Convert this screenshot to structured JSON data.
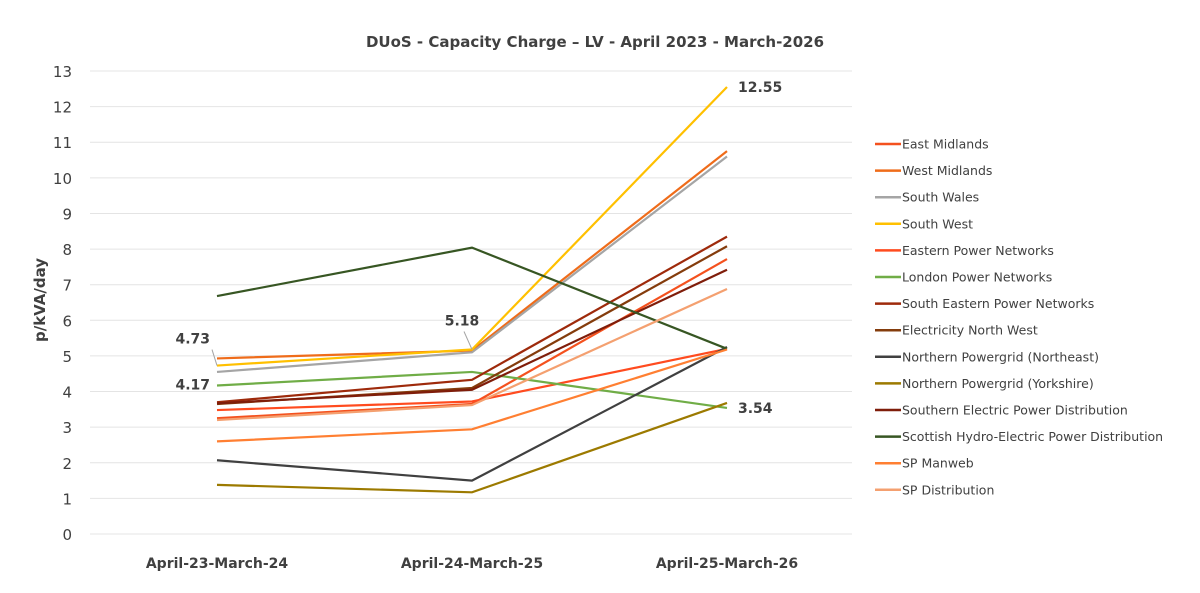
{
  "chart_data": {
    "type": "line",
    "title": "DUoS - Capacity Charge – LV  - April 2023 - March-2026",
    "ylabel": "p/kVA/day",
    "xlabel": "",
    "ylim": [
      0,
      13
    ],
    "yticks": [
      "0",
      "1",
      "2",
      "3",
      "4",
      "5",
      "6",
      "7",
      "8",
      "9",
      "10",
      "11",
      "12",
      "13"
    ],
    "categories": [
      "April-23-March-24",
      "April-24-March-25",
      "April-25-March-26"
    ],
    "grid": true,
    "legend_position": "right",
    "series": [
      {
        "name": "East Midlands",
        "color": "#f4511e",
        "values": [
          3.25,
          3.65,
          7.72
        ]
      },
      {
        "name": "West Midlands",
        "color": "#ef6c1a",
        "values": [
          4.93,
          5.15,
          10.75
        ]
      },
      {
        "name": "South Wales",
        "color": "#a5a5a5",
        "values": [
          4.55,
          5.1,
          10.6
        ]
      },
      {
        "name": "South West",
        "color": "#ffc000",
        "values": [
          4.73,
          5.18,
          12.55
        ]
      },
      {
        "name": "Eastern Power Networks",
        "color": "#ff4b1f",
        "values": [
          3.48,
          3.72,
          5.2
        ]
      },
      {
        "name": "London Power Networks",
        "color": "#70ad47",
        "values": [
          4.17,
          4.55,
          3.54
        ]
      },
      {
        "name": "South Eastern Power Networks",
        "color": "#9e2a0b",
        "values": [
          3.7,
          4.33,
          8.35
        ]
      },
      {
        "name": "Electricity North West",
        "color": "#843c0c",
        "values": [
          3.65,
          4.1,
          8.08
        ]
      },
      {
        "name": "Northern Powergrid (Northeast)",
        "color": "#404040",
        "values": [
          2.07,
          1.5,
          5.25
        ]
      },
      {
        "name": "Northern Powergrid (Yorkshire)",
        "color": "#9c7a00",
        "values": [
          1.38,
          1.17,
          3.68
        ]
      },
      {
        "name": "Southern Electric Power Distribution",
        "color": "#7f1d0a",
        "values": [
          3.67,
          4.05,
          7.42
        ]
      },
      {
        "name": "Scottish Hydro-Electric Power Distribution",
        "color": "#375623",
        "values": [
          6.68,
          8.04,
          5.2
        ]
      },
      {
        "name": "SP Manweb",
        "color": "#ff7f32",
        "values": [
          2.6,
          2.94,
          5.18
        ]
      },
      {
        "name": "SP Distribution",
        "color": "#f4a070",
        "values": [
          3.2,
          3.62,
          6.88
        ]
      }
    ],
    "annotations": [
      {
        "text": "4.73",
        "series": "South West",
        "category": "April-23-March-24"
      },
      {
        "text": "4.17",
        "series": "London Power Networks",
        "category": "April-23-March-24"
      },
      {
        "text": "5.18",
        "series": "South West",
        "category": "April-24-March-25"
      },
      {
        "text": "12.55",
        "series": "South West",
        "category": "April-25-March-26"
      },
      {
        "text": "3.54",
        "series": "London Power Networks",
        "category": "April-25-March-26"
      }
    ]
  }
}
